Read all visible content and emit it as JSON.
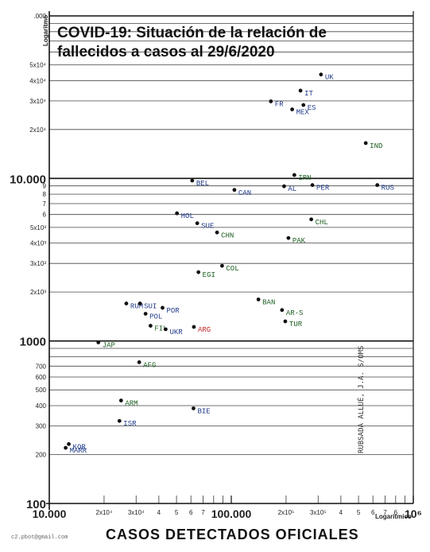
{
  "chart_data": {
    "type": "scatter",
    "title": "COVID-19: Situación de la relación de fallecidos a casos al 29/6/2020",
    "xlabel": "CASOS DETECTADOS OFICIALES",
    "x_scale_label": "Logaritmico",
    "y_scale_label": "Logaritmo",
    "x_scale": "log",
    "y_scale": "log",
    "xlim": [
      10000,
      1000000
    ],
    "ylim": [
      100,
      100000
    ],
    "x_tick_labels": [
      "10.000",
      "2x10⁴",
      "3x10⁴",
      "4",
      "5",
      "6",
      "7",
      "100.000",
      "2x10⁵",
      "3x10⁵",
      "4",
      "5",
      "6",
      "7",
      "6",
      "10⁶"
    ],
    "y_tick_labels": [
      "100",
      "200",
      "300",
      "400",
      "500",
      "600",
      "700",
      "1000",
      "2x10³",
      "3x10³",
      "4x10³",
      "5x10³",
      "6",
      "7",
      "8",
      "9",
      "10.000",
      "2x10⁴",
      "3x10⁴",
      "4x10⁴",
      "5x10⁴",
      ".000"
    ],
    "points": [
      {
        "label": "UK",
        "x": 311000,
        "y": 43600,
        "color": "#1f3a8a"
      },
      {
        "label": "IT",
        "x": 240000,
        "y": 34700,
        "color": "#1f3a8a"
      },
      {
        "label": "FR",
        "x": 165000,
        "y": 29800,
        "color": "#1f3a8a"
      },
      {
        "label": "ES",
        "x": 249000,
        "y": 28300,
        "color": "#1f3a8a"
      },
      {
        "label": "MEX",
        "x": 216000,
        "y": 26600,
        "color": "#1f3a8a"
      },
      {
        "label": "IND",
        "x": 548000,
        "y": 16500,
        "color": "#1b5e20"
      },
      {
        "label": "IRN",
        "x": 222000,
        "y": 10500,
        "color": "#1b5e20"
      },
      {
        "label": "BEL",
        "x": 61000,
        "y": 9700,
        "color": "#1f3a8a"
      },
      {
        "label": "CAN",
        "x": 104000,
        "y": 8500,
        "color": "#1f3a8a"
      },
      {
        "label": "AL",
        "x": 195000,
        "y": 8950,
        "color": "#1f3a8a"
      },
      {
        "label": "PER",
        "x": 279000,
        "y": 9100,
        "color": "#1f3a8a"
      },
      {
        "label": "RUS",
        "x": 634000,
        "y": 9100,
        "color": "#1f3a8a"
      },
      {
        "label": "HOL",
        "x": 50300,
        "y": 6100,
        "color": "#1f3a8a"
      },
      {
        "label": "CHL",
        "x": 275000,
        "y": 5600,
        "color": "#1b5e20"
      },
      {
        "label": "SUE",
        "x": 65000,
        "y": 5300,
        "color": "#1f3a8a"
      },
      {
        "label": "CHN",
        "x": 83500,
        "y": 4650,
        "color": "#1b5e20"
      },
      {
        "label": "PAK",
        "x": 206000,
        "y": 4300,
        "color": "#1b5e20"
      },
      {
        "label": "COL",
        "x": 89000,
        "y": 2900,
        "color": "#1b5e20"
      },
      {
        "label": "EGI",
        "x": 66000,
        "y": 2650,
        "color": "#1b5e20"
      },
      {
        "label": "BAN",
        "x": 141000,
        "y": 1800,
        "color": "#1b5e20"
      },
      {
        "label": "RUM",
        "x": 26500,
        "y": 1700,
        "color": "#1f3a8a"
      },
      {
        "label": "SUI",
        "x": 31500,
        "y": 1700,
        "color": "#1f3a8a"
      },
      {
        "label": "POR",
        "x": 41900,
        "y": 1600,
        "color": "#1f3a8a"
      },
      {
        "label": "AR-S",
        "x": 190000,
        "y": 1550,
        "color": "#1b5e20"
      },
      {
        "label": "POL",
        "x": 33800,
        "y": 1470,
        "color": "#1f3a8a"
      },
      {
        "label": "FIL",
        "x": 36000,
        "y": 1240,
        "color": "#1b5e20"
      },
      {
        "label": "UKR",
        "x": 43600,
        "y": 1180,
        "color": "#1f3a8a"
      },
      {
        "label": "ARG",
        "x": 62300,
        "y": 1220,
        "color": "#c62828"
      },
      {
        "label": "TUR",
        "x": 198000,
        "y": 1320,
        "color": "#1b5e20"
      },
      {
        "label": "JAP",
        "x": 18600,
        "y": 980,
        "color": "#1b5e20"
      },
      {
        "label": "AFG",
        "x": 31200,
        "y": 740,
        "color": "#1b5e20"
      },
      {
        "label": "ARM",
        "x": 24800,
        "y": 430,
        "color": "#1b5e20"
      },
      {
        "label": "BIE",
        "x": 62000,
        "y": 385,
        "color": "#1f3a8a"
      },
      {
        "label": "ISR",
        "x": 24300,
        "y": 322,
        "color": "#1f3a8a"
      },
      {
        "label": "KOR",
        "x": 12800,
        "y": 232,
        "color": "#1f3a8a"
      },
      {
        "label": "MARR",
        "x": 12300,
        "y": 220,
        "color": "#1f3a8a"
      }
    ],
    "grid": true
  },
  "notes": {
    "credit": "c2.pbot@gmail.com",
    "source": "RUBSADA ALLUÉ, J.A. S/OMS"
  }
}
